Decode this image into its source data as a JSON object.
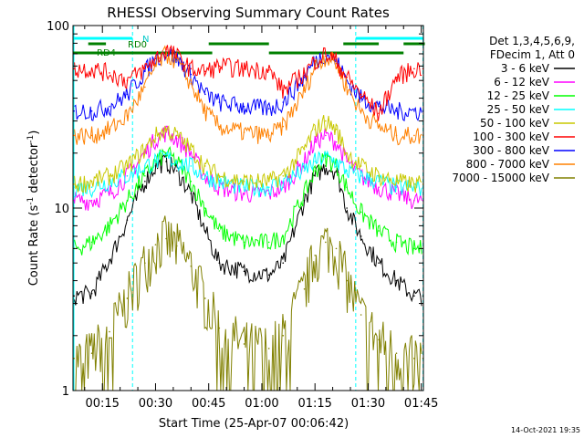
{
  "chart_data": {
    "type": "line",
    "title": "RHESSI Observing Summary Count Rates",
    "xlabel": "Start Time (25-Apr-07 00:06:42)",
    "ylabel": "Count Rate (s⁻¹ detector⁻¹)",
    "ylabel_main": "Count Rate (s",
    "ylabel_sup1": "-1",
    "ylabel_mid": " detector",
    "ylabel_sup2": "-1",
    "ylabel_end": ")",
    "yscale": "log",
    "ylim": [
      1,
      100
    ],
    "xlim_minutes": [
      6.7,
      105.6
    ],
    "x_ticks": [
      {
        "label": "00:15",
        "minute": 15
      },
      {
        "label": "00:30",
        "minute": 30
      },
      {
        "label": "00:45",
        "minute": 45
      },
      {
        "label": "01:00",
        "minute": 60
      },
      {
        "label": "01:15",
        "minute": 75
      },
      {
        "label": "01:30",
        "minute": 90
      },
      {
        "label": "01:45",
        "minute": 105
      }
    ],
    "y_ticks": [
      {
        "label": "1",
        "value": 1
      },
      {
        "label": "10",
        "value": 10
      },
      {
        "label": "100",
        "value": 100
      }
    ],
    "legend_header": [
      "Det 1,3,4,5,6,9,",
      "FDecim 1, Att 0"
    ],
    "legend_position": "right",
    "annotations": {
      "n_label": "N",
      "rd0_label": "RD0",
      "rd4_label": "RD4",
      "timestamp": "14-Oct-2021 19:35"
    },
    "night_minutes": [
      [
        6.7,
        23.5
      ],
      [
        86.5,
        105.6
      ]
    ],
    "saa_boundary_minutes": [
      23.5,
      86.5,
      105.5
    ],
    "rd0_flag_minutes": [
      [
        11,
        16
      ],
      [
        45,
        62
      ],
      [
        83,
        93
      ],
      [
        100,
        106
      ]
    ],
    "rd4_flag_minutes": [
      [
        6.7,
        46
      ],
      [
        62,
        100
      ]
    ],
    "series": [
      {
        "name": "3 - 6 keV",
        "color": "#000000",
        "x": [
          7,
          12,
          17,
          22,
          27,
          30,
          33,
          36,
          40,
          44,
          48,
          55,
          62,
          66,
          72,
          75,
          78,
          81,
          84,
          88,
          93,
          98,
          103,
          105.5
        ],
        "values": [
          3.3,
          3.4,
          5.2,
          8.6,
          14,
          17,
          18,
          16,
          12,
          7.5,
          5.0,
          4.5,
          4.3,
          5.0,
          11,
          15,
          17,
          16,
          10,
          7.0,
          5.0,
          4.0,
          3.3,
          3.3
        ]
      },
      {
        "name": "6 - 12 keV",
        "color": "#ff00ff",
        "x": [
          7,
          12,
          17,
          22,
          27,
          30,
          33,
          36,
          40,
          44,
          48,
          55,
          62,
          66,
          72,
          75,
          78,
          81,
          84,
          88,
          93,
          98,
          103,
          105.5
        ],
        "values": [
          11,
          11,
          12,
          15,
          20,
          24,
          26,
          24,
          20,
          15,
          13,
          12,
          12,
          13,
          18,
          23,
          25,
          23,
          18,
          15,
          13,
          12,
          11,
          11
        ]
      },
      {
        "name": "12 - 25 keV",
        "color": "#00ff00",
        "x": [
          7,
          12,
          17,
          22,
          27,
          30,
          33,
          36,
          40,
          44,
          48,
          55,
          62,
          66,
          72,
          75,
          78,
          81,
          84,
          88,
          93,
          98,
          103,
          105.5
        ],
        "values": [
          6.0,
          6.5,
          8.0,
          11,
          15,
          18,
          20,
          18,
          14,
          10,
          7.5,
          6.5,
          6.5,
          7.0,
          12,
          16,
          19,
          17,
          13,
          9.5,
          7.5,
          6.5,
          6.0,
          6.0
        ]
      },
      {
        "name": "25 - 50 keV",
        "color": "#00ffff",
        "x": [
          7,
          12,
          17,
          22,
          27,
          30,
          33,
          36,
          40,
          44,
          48,
          55,
          62,
          66,
          72,
          75,
          78,
          81,
          84,
          88,
          93,
          98,
          103,
          105.5
        ],
        "values": [
          13,
          13,
          14,
          15,
          17,
          18,
          19,
          18,
          17,
          15,
          14,
          13,
          13,
          14,
          16,
          18,
          19,
          18,
          16,
          15,
          14,
          13,
          13,
          13
        ]
      },
      {
        "name": "50 - 100 keV",
        "color": "#c8c800",
        "x": [
          7,
          12,
          17,
          22,
          27,
          30,
          33,
          36,
          40,
          44,
          48,
          55,
          62,
          66,
          72,
          75,
          78,
          81,
          84,
          88,
          93,
          98,
          103,
          105.5
        ],
        "values": [
          13.5,
          14,
          15,
          17,
          21,
          25,
          27,
          25,
          21,
          17,
          15,
          14,
          14,
          15,
          21,
          27,
          30,
          27,
          20,
          17,
          15,
          14,
          13.5,
          13.5
        ]
      },
      {
        "name": "100 - 300 keV",
        "color": "#ff0000",
        "x": [
          7,
          12,
          17,
          22,
          27,
          30,
          33,
          36,
          40,
          44,
          48,
          55,
          62,
          66,
          72,
          75,
          78,
          81,
          84,
          88,
          93,
          98,
          103,
          105.5
        ],
        "values": [
          58,
          58,
          55,
          50,
          58,
          66,
          74,
          68,
          58,
          56,
          60,
          58,
          57,
          44,
          55,
          64,
          70,
          64,
          52,
          42,
          33,
          52,
          58,
          58
        ]
      },
      {
        "name": "300 - 800 keV",
        "color": "#0000ff",
        "x": [
          7,
          12,
          17,
          22,
          27,
          30,
          33,
          36,
          40,
          44,
          48,
          55,
          62,
          66,
          72,
          75,
          78,
          81,
          84,
          88,
          93,
          98,
          103,
          105.5
        ],
        "values": [
          34,
          34,
          36,
          42,
          56,
          66,
          72,
          66,
          54,
          42,
          38,
          36,
          35,
          38,
          52,
          64,
          70,
          64,
          50,
          40,
          36,
          34,
          34,
          34
        ]
      },
      {
        "name": "800 - 7000 keV",
        "color": "#ff8000",
        "x": [
          7,
          12,
          17,
          22,
          27,
          30,
          33,
          36,
          40,
          44,
          48,
          55,
          62,
          66,
          72,
          75,
          78,
          81,
          84,
          88,
          93,
          98,
          103,
          105.5
        ],
        "values": [
          25,
          25,
          27,
          32,
          46,
          60,
          70,
          64,
          48,
          34,
          28,
          26,
          25,
          28,
          44,
          60,
          68,
          62,
          46,
          34,
          28,
          25,
          25,
          25
        ]
      },
      {
        "name": "7000 - 15000 keV",
        "color": "#808000",
        "x": [
          7,
          12,
          17,
          22,
          27,
          30,
          33,
          36,
          40,
          44,
          48,
          55,
          62,
          66,
          72,
          75,
          78,
          81,
          84,
          88,
          93,
          98,
          103,
          105.5
        ],
        "values": [
          1.5,
          1.6,
          2.1,
          3.2,
          5.0,
          6.3,
          6.8,
          6.2,
          4.8,
          3.2,
          2.2,
          1.8,
          1.7,
          2.0,
          3.6,
          5.5,
          6.5,
          6.0,
          4.0,
          2.6,
          1.9,
          1.6,
          1.5,
          1.5
        ]
      }
    ]
  }
}
